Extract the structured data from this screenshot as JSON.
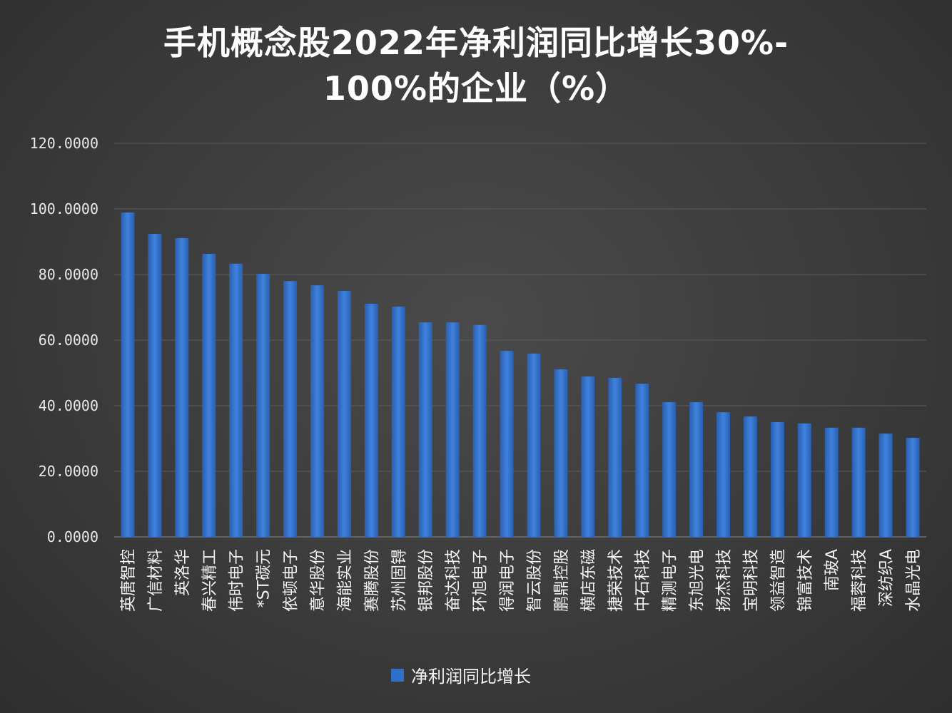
{
  "chart_data": {
    "type": "bar",
    "title": "手机概念股2022年净利润同比增长30%-",
    "title_line2": "100%的企业（%）",
    "categories": [
      "英唐智控",
      "广信材料",
      "英洛华",
      "春兴精工",
      "伟时电子",
      "*ST碳元",
      "依顿电子",
      "意华股份",
      "海能实业",
      "赛腾股份",
      "苏州固锝",
      "银邦股份",
      "奋达科技",
      "环旭电子",
      "得润电子",
      "智云股份",
      "鹏鼎控股",
      "横店东磁",
      "捷荣技术",
      "中石科技",
      "精测电子",
      "东旭光电",
      "扬杰科技",
      "宝明科技",
      "领益智造",
      "锦富技术",
      "南玻A",
      "福蓉科技",
      "深纺织A",
      "水晶光电"
    ],
    "series": [
      {
        "name": "净利润同比增长",
        "color": "#2f6fc9",
        "values": [
          98.9,
          92.4,
          91.1,
          86.3,
          83.3,
          80.2,
          78.0,
          76.7,
          75.0,
          71.1,
          70.2,
          65.4,
          65.4,
          64.6,
          56.7,
          55.9,
          51.1,
          48.9,
          48.5,
          46.7,
          41.1,
          41.1,
          38.0,
          36.7,
          35.0,
          34.6,
          33.3,
          33.3,
          31.5,
          30.2
        ]
      }
    ],
    "yticks": [
      "0.0000",
      "20.0000",
      "40.0000",
      "60.0000",
      "80.0000",
      "100.0000",
      "120.0000"
    ],
    "ylim": [
      0,
      120
    ],
    "grid": true,
    "legend": "bottom",
    "xlabel": "",
    "ylabel": ""
  }
}
